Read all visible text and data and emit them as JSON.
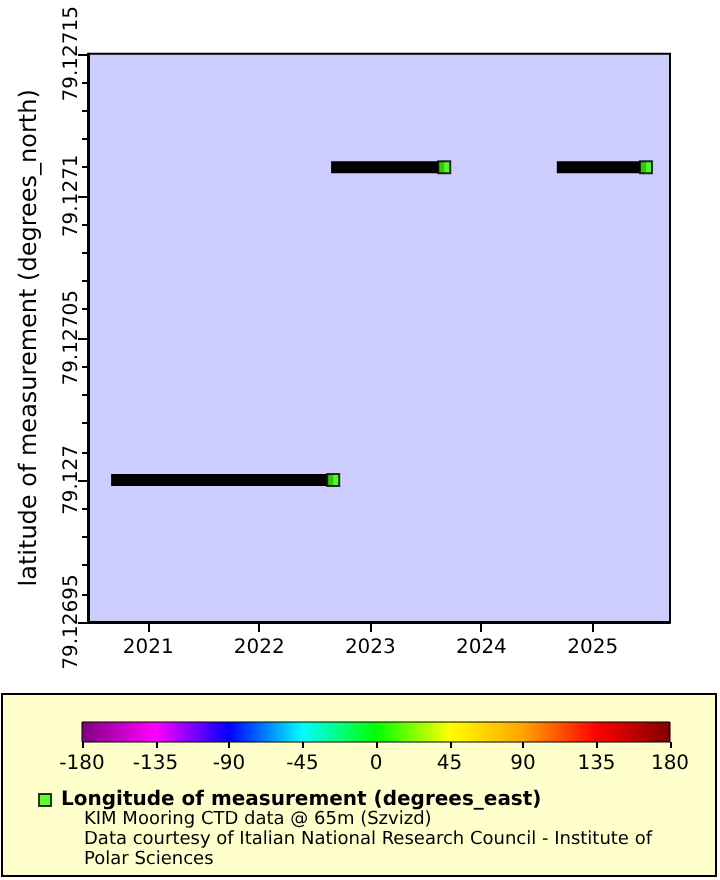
{
  "chart_data": {
    "type": "scatter",
    "ylabel": "latitude of measurement (degrees_north)",
    "xlim": [
      "2020-06-17",
      "2025-09-12"
    ],
    "xticks": [
      "2021",
      "2022",
      "2023",
      "2024",
      "2025"
    ],
    "ylim": [
      79.12695,
      79.12715
    ],
    "yticks": [
      79.12695,
      79.127,
      79.12705,
      79.1271,
      79.12715
    ],
    "series": [
      {
        "type": "line",
        "color": "#000000",
        "x": [
          "2020-09-01",
          "2022-09-01"
        ],
        "values": [
          79.127,
          79.127
        ]
      },
      {
        "type": "line",
        "color": "#000000",
        "x": [
          "2022-08-25",
          "2023-09-01"
        ],
        "values": [
          79.12711,
          79.12711
        ]
      },
      {
        "type": "line",
        "color": "#000000",
        "x": [
          "2024-09-05",
          "2025-06-25"
        ],
        "values": [
          79.12711,
          79.12711
        ]
      },
      {
        "marker": "square",
        "name": "Longitude of measurement (degrees_east)",
        "x": [
          "2022-09-01",
          "2023-09-01",
          "2025-06-25"
        ],
        "values": [
          79.127,
          79.12711,
          79.12711
        ],
        "cvalues": [
          10,
          10,
          10
        ]
      }
    ],
    "clim": [
      -180,
      180
    ],
    "cticks": [
      -180,
      -135,
      -90,
      -45,
      0,
      45,
      90,
      135,
      180
    ],
    "grid": false,
    "legend": "bottom",
    "annotations": [
      "KIM Mooring CTD data @ 65m (Szvizd)",
      "Data courtesy of Italian National Research Council - Institute of Polar Sciences"
    ]
  }
}
